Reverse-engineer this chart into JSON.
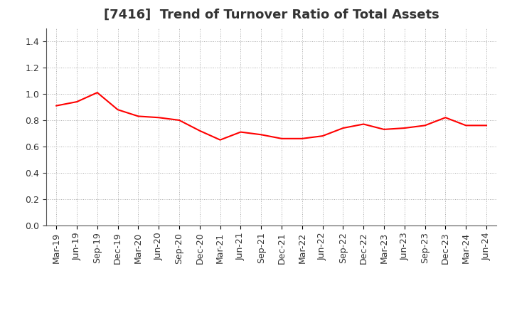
{
  "title": "[7416]  Trend of Turnover Ratio of Total Assets",
  "x_labels": [
    "Mar-19",
    "Jun-19",
    "Sep-19",
    "Dec-19",
    "Mar-20",
    "Jun-20",
    "Sep-20",
    "Dec-20",
    "Mar-21",
    "Jun-21",
    "Sep-21",
    "Dec-21",
    "Mar-22",
    "Jun-22",
    "Sep-22",
    "Dec-22",
    "Mar-23",
    "Jun-23",
    "Sep-23",
    "Dec-23",
    "Mar-24",
    "Jun-24"
  ],
  "y_values": [
    0.91,
    0.94,
    1.01,
    0.88,
    0.83,
    0.82,
    0.8,
    0.72,
    0.65,
    0.71,
    0.69,
    0.66,
    0.66,
    0.68,
    0.74,
    0.77,
    0.73,
    0.74,
    0.76,
    0.82,
    0.76,
    0.76
  ],
  "line_color": "#FF0000",
  "line_width": 1.5,
  "ylim": [
    0.0,
    1.5
  ],
  "yticks": [
    0.0,
    0.2,
    0.4,
    0.6,
    0.8,
    1.0,
    1.2,
    1.4
  ],
  "grid_color": "#aaaaaa",
  "background_color": "#ffffff",
  "title_fontsize": 13,
  "tick_fontsize": 9,
  "title_color": "#333333"
}
